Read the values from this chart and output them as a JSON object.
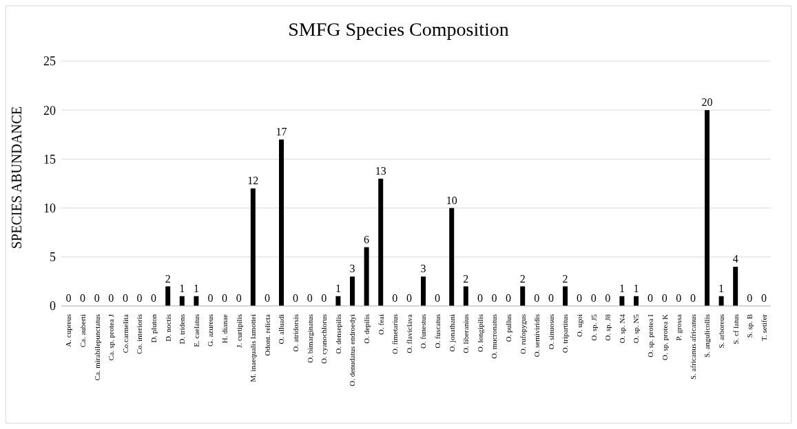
{
  "chart_data": {
    "type": "bar",
    "title": "SMFG Species Composition",
    "ylabel": "SPECIES ABUNDANCE",
    "categories": [
      "A. cupreus",
      "Ca. auberti",
      "Ca. mirabilepunctatus",
      "Ca. sp. protea J",
      "Co.carmelita",
      "Co. interioris",
      "D. pluton",
      "D. noctis",
      "D. tridens",
      "E. caelatus",
      "G. azureus",
      "H. dianae",
      "J. curtipilis",
      "M. inaequalis lamottei",
      "Odont. relicta",
      "O. alluadi",
      "O. atridorsis",
      "O. bimarginatus",
      "O. cyanochlorus",
      "O. densepilis",
      "O. denudatus endroedyi",
      "O. depilis",
      "O. feai",
      "O. fimetarius",
      "O. flaviclava",
      "O. funestus",
      "O. fuscatus",
      "O. jonathani",
      "O. liberanius",
      "O. longipilis",
      "O. mucronatus",
      "O. pullus",
      "O. rufopygus",
      "O. semiviridis",
      "O. sinuosus",
      "O. tripartitus",
      "O. ugoi",
      "O. sp. J5",
      "O. sp. J8",
      "O. sp. N4",
      "O. sp. N5",
      "O. sp. protea I",
      "O. sp. protea K",
      "P. grossa",
      "S. africanus africanus",
      "S. angulicollis",
      "S. arboreus",
      "S. cf latus",
      "S. sp. B",
      "T. setifer"
    ],
    "values": [
      0,
      0,
      0,
      0,
      0,
      0,
      0,
      2,
      1,
      1,
      0,
      0,
      0,
      12,
      0,
      17,
      0,
      0,
      0,
      1,
      3,
      6,
      13,
      0,
      0,
      3,
      0,
      10,
      2,
      0,
      0,
      0,
      2,
      0,
      0,
      2,
      0,
      0,
      0,
      1,
      1,
      0,
      0,
      0,
      0,
      20,
      1,
      4,
      0,
      0
    ],
    "color": "#000000",
    "ylim": [
      0,
      25
    ],
    "yticks": [
      0,
      5,
      10,
      15,
      20,
      25
    ],
    "grid": "y",
    "data_labels": true
  }
}
